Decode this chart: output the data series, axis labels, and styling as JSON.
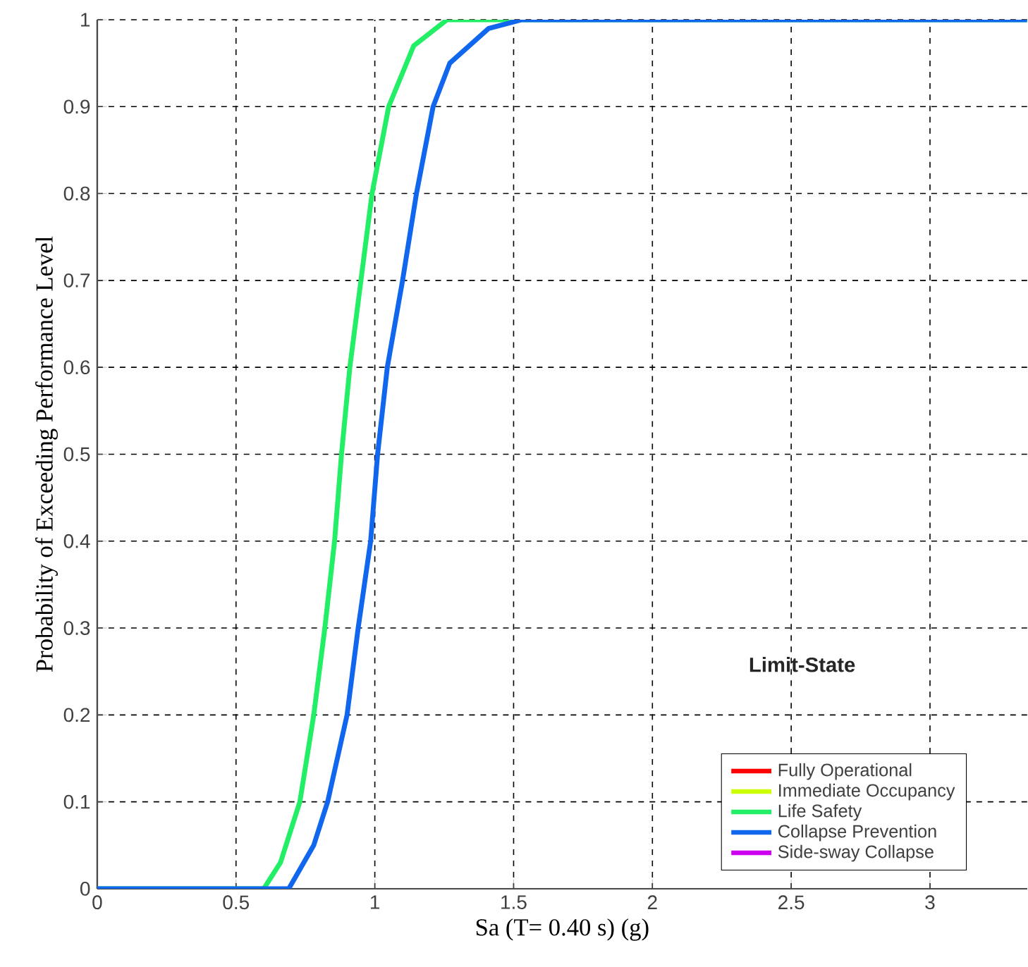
{
  "chart_data": {
    "type": "line",
    "xlabel": "Sa (T= 0.40 s) (g)",
    "ylabel": "Probability of Exceeding Performance Level",
    "legend_title": "Limit-State",
    "legend": "bottom right",
    "grid": true,
    "line_style": "solid",
    "marker": "none",
    "xlim": [
      0,
      3.35
    ],
    "ylim": [
      0,
      1
    ],
    "xticks": [
      0,
      0.5,
      1,
      1.5,
      2,
      2.5,
      3
    ],
    "yticks": [
      0,
      0.1,
      0.2,
      0.3,
      0.4,
      0.5,
      0.6,
      0.7,
      0.8,
      0.9,
      1
    ],
    "series": [
      {
        "name": "Fully Operational",
        "color": "#ff0000",
        "values": [
          null
        ]
      },
      {
        "name": "Immediate Occupancy",
        "color": "#ccff00",
        "values": [
          null
        ]
      },
      {
        "name": "Life Safety",
        "color": "#22ee66",
        "x": [
          0,
          0.6,
          0.66,
          0.73,
          0.78,
          0.82,
          0.855,
          0.88,
          0.91,
          0.95,
          0.99,
          1.05,
          1.14,
          1.26,
          3.35
        ],
        "values": [
          0,
          0,
          0.03,
          0.1,
          0.2,
          0.3,
          0.4,
          0.5,
          0.6,
          0.7,
          0.8,
          0.9,
          0.97,
          1,
          1
        ]
      },
      {
        "name": "Collapse Prevention",
        "color": "#1166ee",
        "x": [
          0,
          0.69,
          0.78,
          0.83,
          0.9,
          0.94,
          0.985,
          1.01,
          1.045,
          1.1,
          1.15,
          1.21,
          1.27,
          1.41,
          1.53,
          3.35
        ],
        "values": [
          0,
          0,
          0.05,
          0.1,
          0.2,
          0.3,
          0.4,
          0.5,
          0.6,
          0.7,
          0.8,
          0.9,
          0.95,
          0.99,
          1,
          1
        ]
      },
      {
        "name": "Side-sway Collapse",
        "color": "#cc00ee",
        "values": [
          null
        ]
      }
    ]
  }
}
